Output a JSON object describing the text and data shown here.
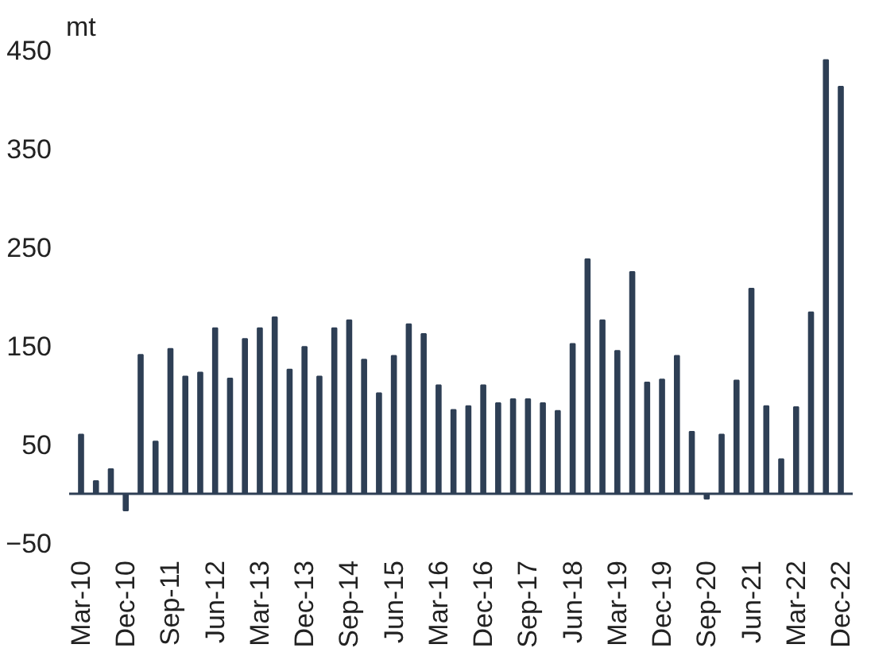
{
  "chart_data": {
    "type": "bar",
    "ylabel": "mt",
    "categories": [
      "Mar-10",
      null,
      null,
      "Dec-10",
      null,
      null,
      "Sep-11",
      null,
      null,
      "Jun-12",
      null,
      null,
      "Mar-13",
      null,
      null,
      "Dec-13",
      null,
      null,
      "Sep-14",
      null,
      null,
      "Jun-15",
      null,
      null,
      "Mar-16",
      null,
      null,
      "Dec-16",
      null,
      null,
      "Sep-17",
      null,
      null,
      "Jun-18",
      null,
      null,
      "Mar-19",
      null,
      null,
      "Dec-19",
      null,
      null,
      "Sep-20",
      null,
      null,
      "Jun-21",
      null,
      null,
      "Mar-22",
      null,
      null,
      "Dec-22"
    ],
    "values": [
      60,
      13,
      25,
      -17,
      141,
      53,
      147,
      119,
      123,
      168,
      117,
      157,
      168,
      179,
      126,
      149,
      119,
      168,
      176,
      136,
      102,
      140,
      172,
      162,
      110,
      85,
      89,
      110,
      92,
      96,
      96,
      92,
      84,
      152,
      238,
      176,
      145,
      225,
      113,
      116,
      140,
      63,
      -5,
      60,
      115,
      208,
      89,
      35,
      88,
      184,
      440,
      413
    ],
    "color": "#2e3f55",
    "ylim": [
      -50,
      450
    ],
    "yticks": [
      -50,
      50,
      150,
      250,
      350,
      450
    ],
    "grid": false
  }
}
